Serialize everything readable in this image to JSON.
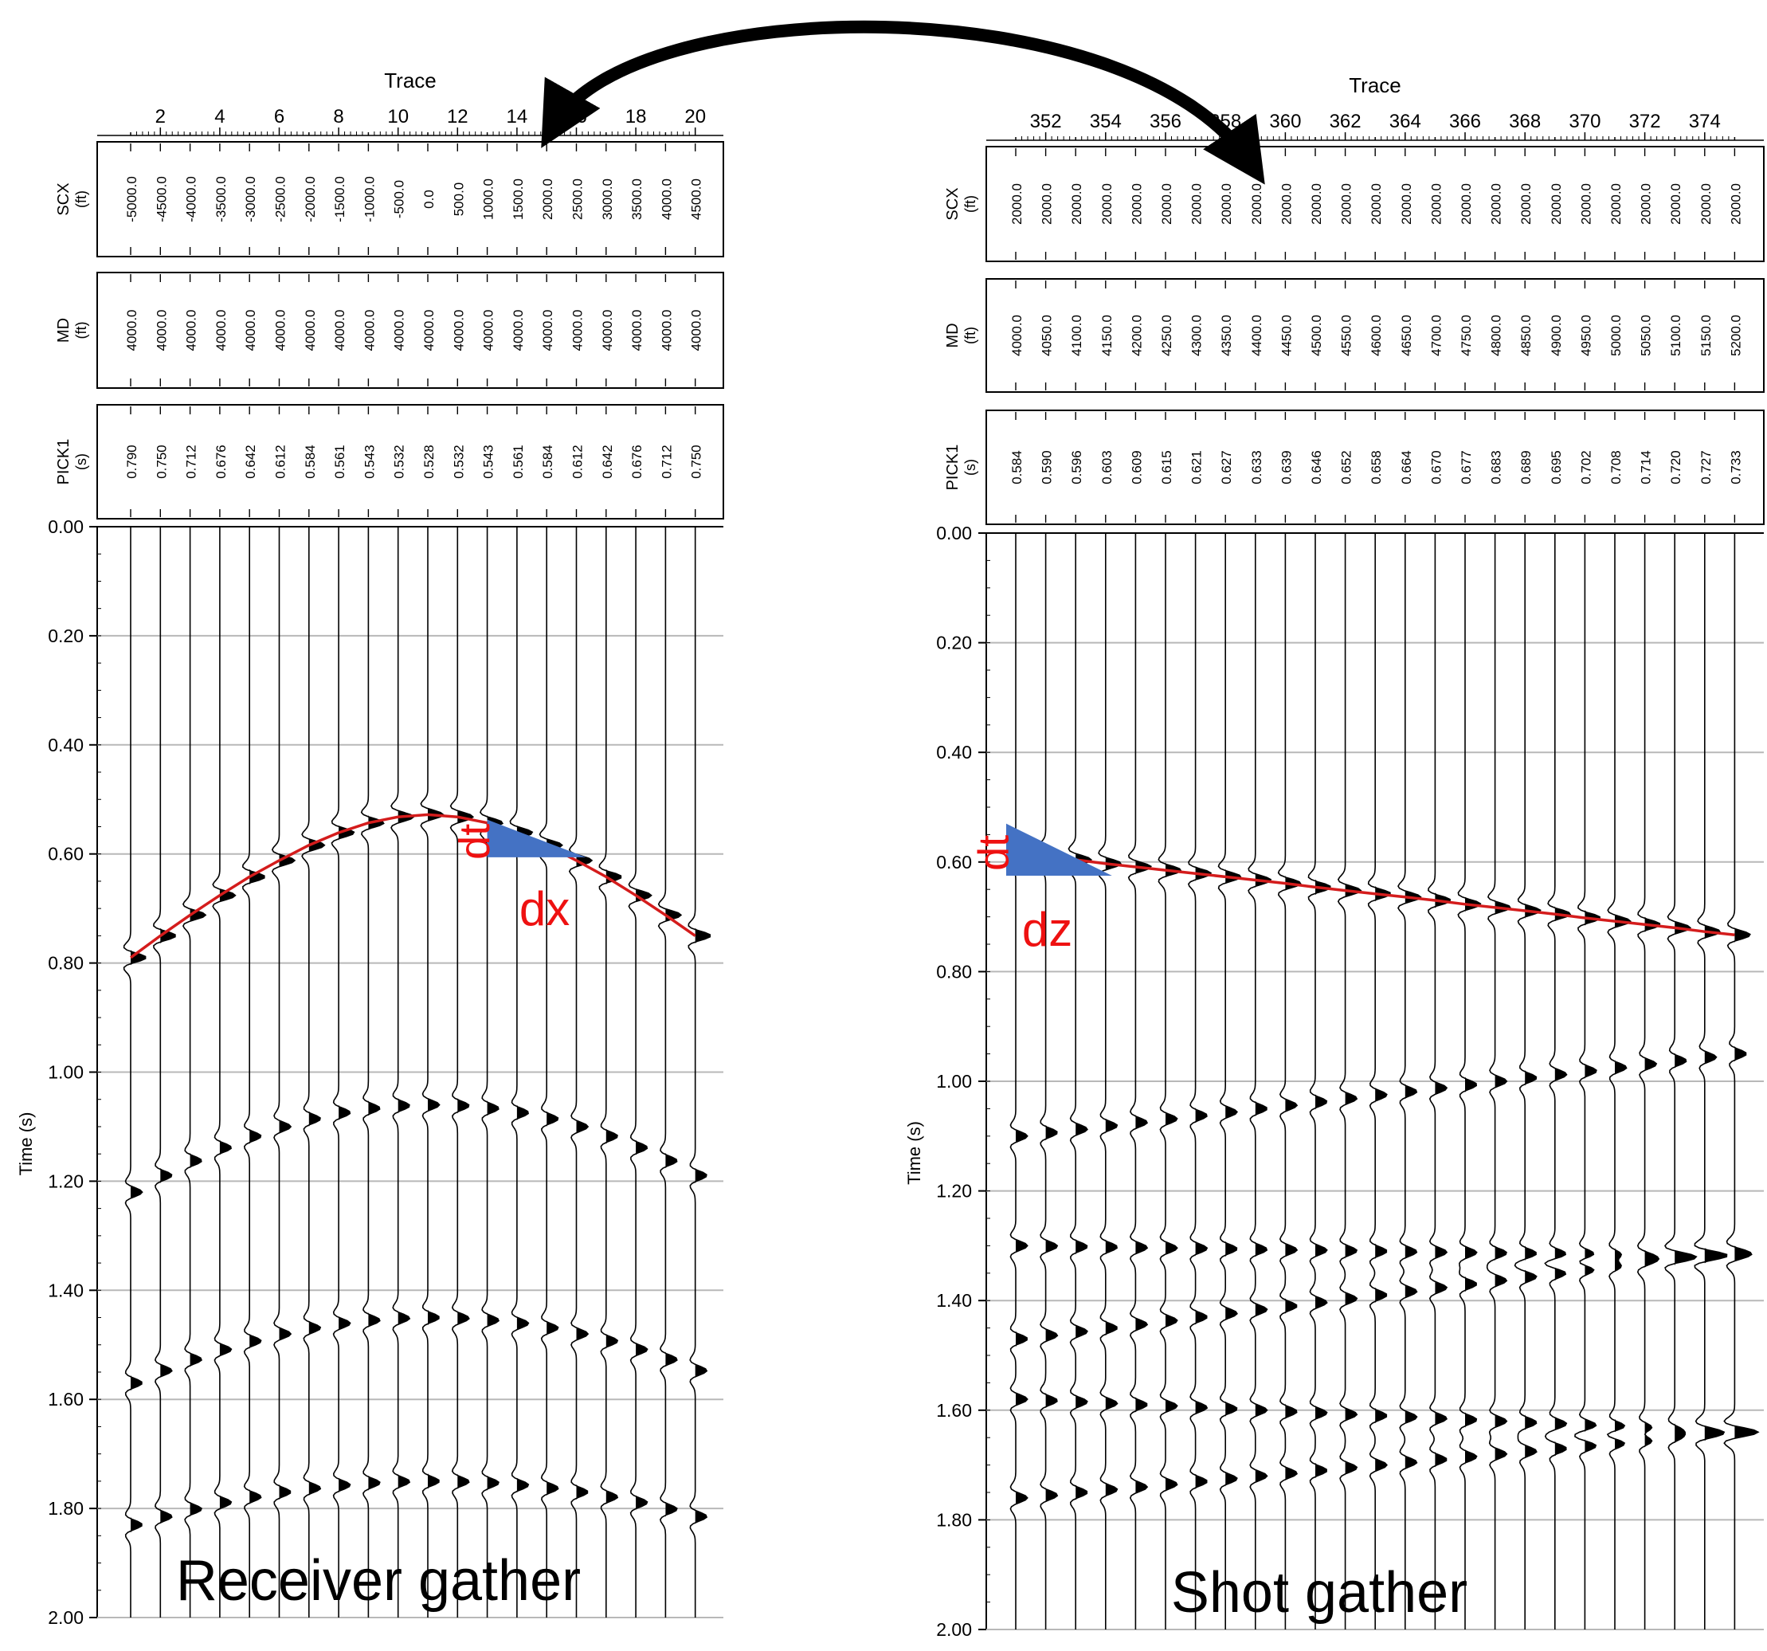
{
  "colors": {
    "trace": "#000000",
    "grid": "#b8b8b8",
    "pick_curve": "#d41c1c",
    "triangle": "#4472c4",
    "annotation": "#ee1111",
    "arrow": "#000000"
  },
  "arrow": {
    "direction": "double-headed",
    "connects": [
      "trace-axis-left",
      "trace-axis-right"
    ]
  },
  "chart_data": [
    {
      "type": "line",
      "caption": "Receiver gather",
      "xlabel": "Trace",
      "ylabel": "Time (s)",
      "x_ticks": [
        "2",
        "4",
        "6",
        "8",
        "10",
        "12",
        "14",
        "16",
        "18",
        "20"
      ],
      "y_ticks": [
        "0.00",
        "0.20",
        "0.40",
        "0.60",
        "0.80",
        "1.00",
        "1.20",
        "1.40",
        "1.60",
        "1.80",
        "2.00"
      ],
      "ylim": [
        0,
        2
      ],
      "y_inverted": true,
      "grid": true,
      "header_rows": [
        {
          "name": "SCX",
          "unit": "(ft)",
          "values": [
            "-5000.0",
            "-4500.0",
            "-4000.0",
            "-3500.0",
            "-3000.0",
            "-2500.0",
            "-2000.0",
            "-1500.0",
            "-1000.0",
            "-500.0",
            "0.0",
            "500.0",
            "1000.0",
            "1500.0",
            "2000.0",
            "2500.0",
            "3000.0",
            "3500.0",
            "4000.0",
            "4500.0"
          ]
        },
        {
          "name": "MD",
          "unit": "(ft)",
          "values": [
            "4000.0",
            "4000.0",
            "4000.0",
            "4000.0",
            "4000.0",
            "4000.0",
            "4000.0",
            "4000.0",
            "4000.0",
            "4000.0",
            "4000.0",
            "4000.0",
            "4000.0",
            "4000.0",
            "4000.0",
            "4000.0",
            "4000.0",
            "4000.0",
            "4000.0",
            "4000.0"
          ]
        },
        {
          "name": "PICK1",
          "unit": "(s)",
          "values": [
            "0.790",
            "0.750",
            "0.712",
            "0.676",
            "0.642",
            "0.612",
            "0.584",
            "0.561",
            "0.543",
            "0.532",
            "0.528",
            "0.532",
            "0.543",
            "0.561",
            "0.584",
            "0.612",
            "0.642",
            "0.676",
            "0.712",
            "0.750"
          ]
        }
      ],
      "trace_numbers": [
        1,
        2,
        3,
        4,
        5,
        6,
        7,
        8,
        9,
        10,
        11,
        12,
        13,
        14,
        15,
        16,
        17,
        18,
        19,
        20
      ],
      "pick_times": [
        0.79,
        0.75,
        0.712,
        0.676,
        0.642,
        0.612,
        0.584,
        0.561,
        0.543,
        0.532,
        0.528,
        0.532,
        0.543,
        0.561,
        0.584,
        0.612,
        0.642,
        0.676,
        0.712,
        0.75
      ],
      "events": [
        {
          "kind": "hyperbola",
          "t0": 1.06,
          "dip": 0.16
        },
        {
          "kind": "hyperbola",
          "t0": 1.45,
          "dip": 0.12
        },
        {
          "kind": "hyperbola",
          "t0": 1.75,
          "dip": 0.08
        }
      ],
      "annotations": {
        "dt": "dt",
        "dx": "dx"
      }
    },
    {
      "type": "line",
      "caption": "Shot gather",
      "xlabel": "Trace",
      "ylabel": "Time (s)",
      "x_ticks": [
        "352",
        "354",
        "356",
        "358",
        "360",
        "362",
        "364",
        "366",
        "368",
        "370",
        "372",
        "374"
      ],
      "y_ticks": [
        "0.00",
        "0.20",
        "0.40",
        "0.60",
        "0.80",
        "1.00",
        "1.20",
        "1.40",
        "1.60",
        "1.80",
        "2.00"
      ],
      "ylim": [
        0,
        2
      ],
      "y_inverted": true,
      "grid": true,
      "header_rows": [
        {
          "name": "SCX",
          "unit": "(ft)",
          "values": [
            "2000.0",
            "2000.0",
            "2000.0",
            "2000.0",
            "2000.0",
            "2000.0",
            "2000.0",
            "2000.0",
            "2000.0",
            "2000.0",
            "2000.0",
            "2000.0",
            "2000.0",
            "2000.0",
            "2000.0",
            "2000.0",
            "2000.0",
            "2000.0",
            "2000.0",
            "2000.0",
            "2000.0",
            "2000.0",
            "2000.0",
            "2000.0",
            "2000.0"
          ]
        },
        {
          "name": "MD",
          "unit": "(ft)",
          "values": [
            "4000.0",
            "4050.0",
            "4100.0",
            "4150.0",
            "4200.0",
            "4250.0",
            "4300.0",
            "4350.0",
            "4400.0",
            "4450.0",
            "4500.0",
            "4550.0",
            "4600.0",
            "4650.0",
            "4700.0",
            "4750.0",
            "4800.0",
            "4850.0",
            "4900.0",
            "4950.0",
            "5000.0",
            "5050.0",
            "5100.0",
            "5150.0",
            "5200.0"
          ]
        },
        {
          "name": "PICK1",
          "unit": "(s)",
          "values": [
            "0.584",
            "0.590",
            "0.596",
            "0.603",
            "0.609",
            "0.615",
            "0.621",
            "0.627",
            "0.633",
            "0.639",
            "0.646",
            "0.652",
            "0.658",
            "0.664",
            "0.670",
            "0.677",
            "0.683",
            "0.689",
            "0.695",
            "0.702",
            "0.708",
            "0.714",
            "0.720",
            "0.727",
            "0.733"
          ]
        }
      ],
      "trace_numbers": [
        351,
        352,
        353,
        354,
        355,
        356,
        357,
        358,
        359,
        360,
        361,
        362,
        363,
        364,
        365,
        366,
        367,
        368,
        369,
        370,
        371,
        372,
        373,
        374,
        375
      ],
      "pick_times": [
        0.584,
        0.59,
        0.596,
        0.603,
        0.609,
        0.615,
        0.621,
        0.627,
        0.633,
        0.639,
        0.646,
        0.652,
        0.658,
        0.664,
        0.67,
        0.677,
        0.683,
        0.689,
        0.695,
        0.702,
        0.708,
        0.714,
        0.72,
        0.727,
        0.733
      ],
      "events": [
        {
          "kind": "linear",
          "t_first": 1.1,
          "t_last": 0.95
        },
        {
          "kind": "linear",
          "t_first": 1.3,
          "t_last": 1.32
        },
        {
          "kind": "linear",
          "t_first": 1.47,
          "t_last": 1.31
        },
        {
          "kind": "linear",
          "t_first": 1.58,
          "t_last": 1.64
        },
        {
          "kind": "linear",
          "t_first": 1.76,
          "t_last": 1.64
        }
      ],
      "annotations": {
        "dt": "dt",
        "dz": "dz"
      }
    }
  ]
}
